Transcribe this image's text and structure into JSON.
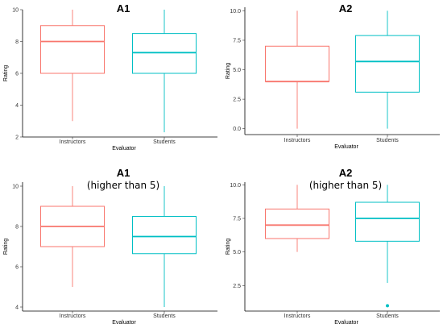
{
  "chart_data": [
    {
      "type": "box",
      "title": "A1",
      "subtitle": "",
      "xlabel": "Evaluator",
      "ylabel": "Rating",
      "ylim": [
        2,
        10
      ],
      "yticks": [
        "2",
        "4",
        "6",
        "8",
        "10"
      ],
      "categories": [
        "Instructors",
        "Students"
      ],
      "colors": [
        "#F8766D",
        "#00BFC4"
      ],
      "boxes": [
        {
          "min": 3,
          "q1": 6,
          "median": 8,
          "q3": 9,
          "max": 10,
          "outliers": []
        },
        {
          "min": 2.3,
          "q1": 6,
          "median": 7.3,
          "q3": 8.5,
          "max": 10,
          "outliers": []
        }
      ]
    },
    {
      "type": "box",
      "title": "A2",
      "subtitle": "",
      "xlabel": "Evaluator",
      "ylabel": "Rating",
      "ylim": [
        -0.5,
        10.3
      ],
      "yticks": [
        "0.0",
        "2.5",
        "5.0",
        "7.5",
        "10.0"
      ],
      "categories": [
        "Instructors",
        "Students"
      ],
      "colors": [
        "#F8766D",
        "#00BFC4"
      ],
      "boxes": [
        {
          "min": 0,
          "q1": 4,
          "median": 4,
          "q3": 7,
          "max": 10,
          "outliers": []
        },
        {
          "min": 0,
          "q1": 3.1,
          "median": 5.7,
          "q3": 7.9,
          "max": 10,
          "outliers": []
        }
      ]
    },
    {
      "type": "box",
      "title": "A1",
      "subtitle": "(higher than 5)",
      "xlabel": "Evaluator",
      "ylabel": "Rating",
      "ylim": [
        3.8,
        10.2
      ],
      "yticks": [
        "4",
        "6",
        "8",
        "10"
      ],
      "categories": [
        "Instructors",
        "Students"
      ],
      "colors": [
        "#F8766D",
        "#00BFC4"
      ],
      "boxes": [
        {
          "min": 5,
          "q1": 7,
          "median": 8,
          "q3": 9,
          "max": 10,
          "outliers": []
        },
        {
          "min": 4,
          "q1": 6.65,
          "median": 7.5,
          "q3": 8.5,
          "max": 10,
          "outliers": []
        }
      ]
    },
    {
      "type": "box",
      "title": "A2",
      "subtitle": "(higher than 5)",
      "xlabel": "Evaluator",
      "ylabel": "Rating",
      "ylim": [
        0.6,
        10.2
      ],
      "yticks": [
        "2.5",
        "5.0",
        "7.5",
        "10.0"
      ],
      "categories": [
        "Instructors",
        "Students"
      ],
      "colors": [
        "#F8766D",
        "#00BFC4"
      ],
      "boxes": [
        {
          "min": 5,
          "q1": 6,
          "median": 7,
          "q3": 8.2,
          "max": 10,
          "outliers": []
        },
        {
          "min": 2.7,
          "q1": 5.8,
          "median": 7.5,
          "q3": 8.7,
          "max": 10,
          "outliers": [
            1
          ]
        }
      ]
    }
  ]
}
